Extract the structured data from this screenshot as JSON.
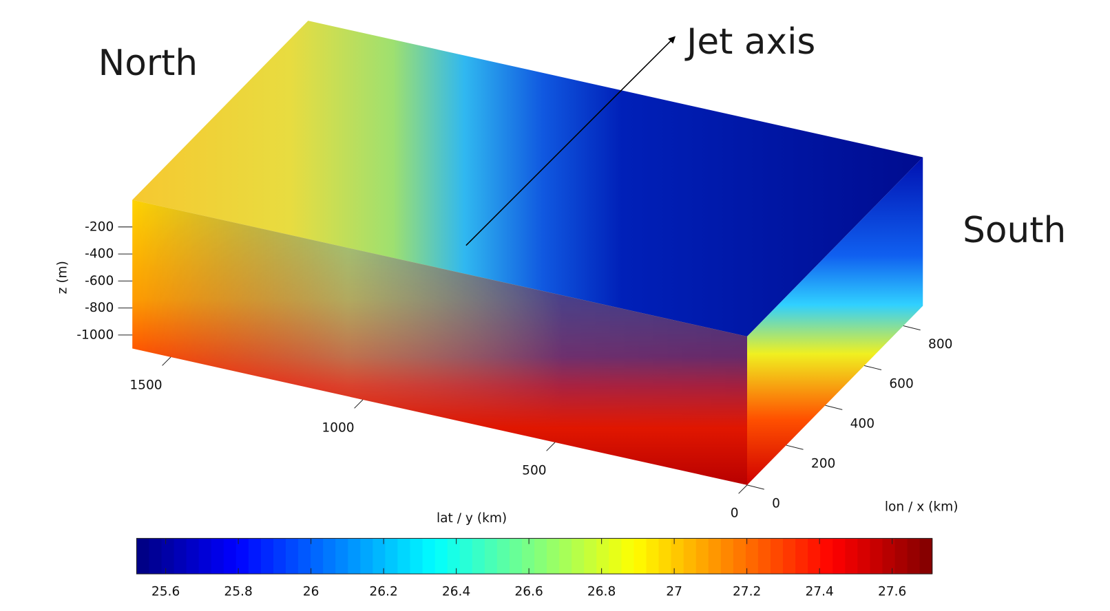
{
  "chart_data": {
    "type": "surface3d",
    "annotations": [
      "North",
      "Jet axis",
      "South"
    ],
    "xlabel": "lon / x (km)",
    "ylabel": "lat / y (km)",
    "zlabel": "z (m)",
    "xlim": [
      0,
      900
    ],
    "xticks": [
      0,
      200,
      400,
      600,
      800
    ],
    "ylim": [
      0,
      1600
    ],
    "yticks": [
      0,
      500,
      1000,
      1500
    ],
    "zlim": [
      -1100,
      0
    ],
    "zticks": [
      -1000,
      -800,
      -600,
      -400,
      -200
    ],
    "colormap": "jet",
    "clim": [
      25.52,
      27.71
    ],
    "cticks": [
      25.6,
      25.8,
      26,
      26.2,
      26.4,
      26.6,
      26.8,
      27,
      27.2,
      27.4,
      27.6
    ]
  }
}
